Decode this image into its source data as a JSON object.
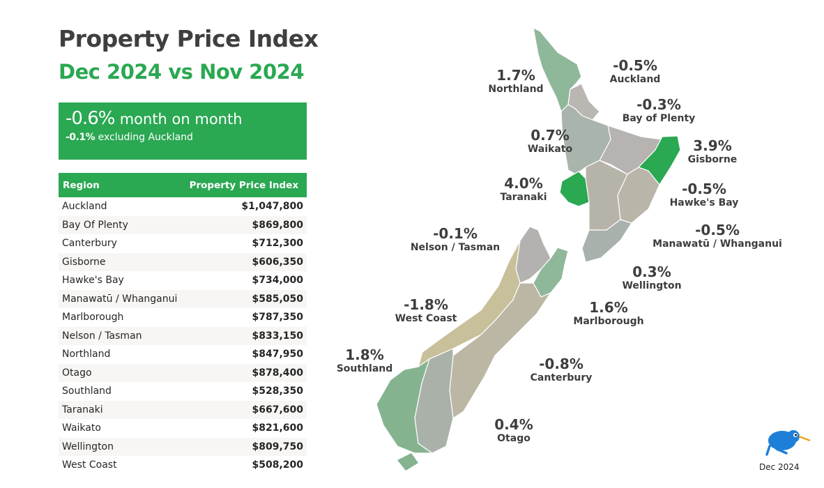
{
  "header": {
    "title": "Property Price Index",
    "subtitle": "Dec 2024 vs Nov 2024"
  },
  "kpi": {
    "value": "-0.6%",
    "value_label": "month on month",
    "sub_value": "-0.1%",
    "sub_label": "excluding Auckland"
  },
  "table": {
    "columns": [
      "Region",
      "Property Price Index"
    ],
    "rows": [
      [
        "Auckland",
        "$1,047,800"
      ],
      [
        "Bay Of Plenty",
        "$869,800"
      ],
      [
        "Canterbury",
        "$712,300"
      ],
      [
        "Gisborne",
        "$606,350"
      ],
      [
        "Hawke's Bay",
        "$734,000"
      ],
      [
        "Manawatū / Whanganui",
        "$585,050"
      ],
      [
        "Marlborough",
        "$787,350"
      ],
      [
        "Nelson / Tasman",
        "$833,150"
      ],
      [
        "Northland",
        "$847,950"
      ],
      [
        "Otago",
        "$878,400"
      ],
      [
        "Southland",
        "$528,350"
      ],
      [
        "Taranaki",
        "$667,600"
      ],
      [
        "Waikato",
        "$821,600"
      ],
      [
        "Wellington",
        "$809,750"
      ],
      [
        "West Coast",
        "$508,200"
      ]
    ]
  },
  "map": {
    "regions": [
      {
        "name": "Northland",
        "change": "1.7%",
        "color": "#8fb89a"
      },
      {
        "name": "Auckland",
        "change": "-0.5%",
        "color": "#bab6b2"
      },
      {
        "name": "Bay of Plenty",
        "change": "-0.3%",
        "color": "#b7b3b0"
      },
      {
        "name": "Waikato",
        "change": "0.7%",
        "color": "#a9b4ac"
      },
      {
        "name": "Gisborne",
        "change": "3.9%",
        "color": "#2aa852"
      },
      {
        "name": "Taranaki",
        "change": "4.0%",
        "color": "#2aa852"
      },
      {
        "name": "Hawke's Bay",
        "change": "-0.5%",
        "color": "#b9b5a8"
      },
      {
        "name": "Manawatū / Whanganui",
        "change": "-0.5%",
        "color": "#b6b3a8"
      },
      {
        "name": "Nelson / Tasman",
        "change": "-0.1%",
        "color": "#b4b2b0"
      },
      {
        "name": "Wellington",
        "change": "0.3%",
        "color": "#a8b1ac"
      },
      {
        "name": "West Coast",
        "change": "-1.8%",
        "color": "#c8c09a"
      },
      {
        "name": "Marlborough",
        "change": "1.6%",
        "color": "#8fb89a"
      },
      {
        "name": "Southland",
        "change": "1.8%",
        "color": "#86b38f"
      },
      {
        "name": "Canterbury",
        "change": "-0.8%",
        "color": "#bbb7a4"
      },
      {
        "name": "Otago",
        "change": "0.4%",
        "color": "#a9b1a9"
      }
    ]
  },
  "footer": {
    "date": "Dec 2024"
  },
  "colors": {
    "accent": "#2aa852"
  }
}
